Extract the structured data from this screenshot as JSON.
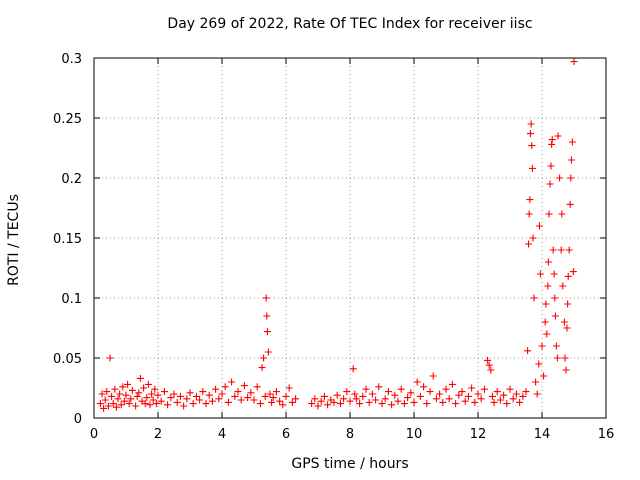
{
  "chart_data": {
    "type": "scatter",
    "title": "Day 269 of 2022, Rate Of TEC Index for receiver iisc",
    "xlabel": "GPS time / hours",
    "ylabel": "ROTI / TECUs",
    "xlim": [
      0,
      16
    ],
    "ylim": [
      0,
      0.3
    ],
    "xticks": [
      0,
      2,
      4,
      6,
      8,
      10,
      12,
      14,
      16
    ],
    "yticks": [
      0,
      0.05,
      0.1,
      0.15,
      0.2,
      0.25,
      0.3
    ],
    "ytick_labels": [
      "0",
      "0.05",
      "0.1",
      "0.15",
      "0.2",
      "0.25",
      "0.3"
    ],
    "grid": true,
    "marker": "+",
    "series": [
      {
        "name": "ROTI",
        "color": "#ff0000",
        "points": [
          [
            0.2,
            0.012
          ],
          [
            0.25,
            0.02
          ],
          [
            0.3,
            0.008
          ],
          [
            0.35,
            0.015
          ],
          [
            0.4,
            0.022
          ],
          [
            0.45,
            0.01
          ],
          [
            0.5,
            0.05
          ],
          [
            0.55,
            0.018
          ],
          [
            0.6,
            0.012
          ],
          [
            0.65,
            0.024
          ],
          [
            0.7,
            0.009
          ],
          [
            0.75,
            0.016
          ],
          [
            0.8,
            0.02
          ],
          [
            0.85,
            0.011
          ],
          [
            0.9,
            0.026
          ],
          [
            0.95,
            0.014
          ],
          [
            1.0,
            0.019
          ],
          [
            1.05,
            0.028
          ],
          [
            1.1,
            0.012
          ],
          [
            1.15,
            0.016
          ],
          [
            1.2,
            0.023
          ],
          [
            1.3,
            0.01
          ],
          [
            1.35,
            0.018
          ],
          [
            1.4,
            0.021
          ],
          [
            1.45,
            0.033
          ],
          [
            1.5,
            0.014
          ],
          [
            1.55,
            0.025
          ],
          [
            1.6,
            0.012
          ],
          [
            1.65,
            0.017
          ],
          [
            1.7,
            0.028
          ],
          [
            1.75,
            0.011
          ],
          [
            1.8,
            0.02
          ],
          [
            1.85,
            0.015
          ],
          [
            1.9,
            0.024
          ],
          [
            1.95,
            0.012
          ],
          [
            2.0,
            0.019
          ],
          [
            2.1,
            0.014
          ],
          [
            2.2,
            0.022
          ],
          [
            2.3,
            0.011
          ],
          [
            2.4,
            0.017
          ],
          [
            2.5,
            0.02
          ],
          [
            2.6,
            0.013
          ],
          [
            2.7,
            0.018
          ],
          [
            2.8,
            0.01
          ],
          [
            2.9,
            0.016
          ],
          [
            3.0,
            0.021
          ],
          [
            3.1,
            0.012
          ],
          [
            3.2,
            0.018
          ],
          [
            3.3,
            0.015
          ],
          [
            3.4,
            0.022
          ],
          [
            3.5,
            0.012
          ],
          [
            3.6,
            0.019
          ],
          [
            3.7,
            0.014
          ],
          [
            3.8,
            0.024
          ],
          [
            3.9,
            0.016
          ],
          [
            4.0,
            0.02
          ],
          [
            4.1,
            0.026
          ],
          [
            4.2,
            0.013
          ],
          [
            4.3,
            0.03
          ],
          [
            4.4,
            0.018
          ],
          [
            4.5,
            0.022
          ],
          [
            4.6,
            0.015
          ],
          [
            4.7,
            0.027
          ],
          [
            4.8,
            0.017
          ],
          [
            4.9,
            0.021
          ],
          [
            5.0,
            0.015
          ],
          [
            5.1,
            0.026
          ],
          [
            5.2,
            0.012
          ],
          [
            5.25,
            0.042
          ],
          [
            5.3,
            0.05
          ],
          [
            5.35,
            0.018
          ],
          [
            5.38,
            0.1
          ],
          [
            5.4,
            0.085
          ],
          [
            5.42,
            0.072
          ],
          [
            5.45,
            0.055
          ],
          [
            5.5,
            0.02
          ],
          [
            5.55,
            0.013
          ],
          [
            5.6,
            0.017
          ],
          [
            5.7,
            0.022
          ],
          [
            5.8,
            0.014
          ],
          [
            5.9,
            0.011
          ],
          [
            6.0,
            0.018
          ],
          [
            6.1,
            0.025
          ],
          [
            6.2,
            0.013
          ],
          [
            6.3,
            0.016
          ],
          [
            6.8,
            0.012
          ],
          [
            6.9,
            0.016
          ],
          [
            7.0,
            0.01
          ],
          [
            7.1,
            0.014
          ],
          [
            7.2,
            0.018
          ],
          [
            7.3,
            0.011
          ],
          [
            7.4,
            0.015
          ],
          [
            7.5,
            0.013
          ],
          [
            7.6,
            0.019
          ],
          [
            7.7,
            0.012
          ],
          [
            7.8,
            0.016
          ],
          [
            7.9,
            0.022
          ],
          [
            8.0,
            0.014
          ],
          [
            8.1,
            0.041
          ],
          [
            8.15,
            0.02
          ],
          [
            8.2,
            0.016
          ],
          [
            8.3,
            0.012
          ],
          [
            8.4,
            0.018
          ],
          [
            8.5,
            0.024
          ],
          [
            8.6,
            0.013
          ],
          [
            8.7,
            0.02
          ],
          [
            8.8,
            0.015
          ],
          [
            8.9,
            0.026
          ],
          [
            9.0,
            0.012
          ],
          [
            9.1,
            0.016
          ],
          [
            9.2,
            0.022
          ],
          [
            9.3,
            0.011
          ],
          [
            9.4,
            0.019
          ],
          [
            9.5,
            0.014
          ],
          [
            9.6,
            0.024
          ],
          [
            9.7,
            0.012
          ],
          [
            9.8,
            0.017
          ],
          [
            9.9,
            0.021
          ],
          [
            10.0,
            0.013
          ],
          [
            10.1,
            0.03
          ],
          [
            10.2,
            0.018
          ],
          [
            10.3,
            0.026
          ],
          [
            10.4,
            0.012
          ],
          [
            10.5,
            0.022
          ],
          [
            10.6,
            0.035
          ],
          [
            10.7,
            0.016
          ],
          [
            10.8,
            0.02
          ],
          [
            10.9,
            0.013
          ],
          [
            11.0,
            0.024
          ],
          [
            11.1,
            0.016
          ],
          [
            11.2,
            0.028
          ],
          [
            11.3,
            0.012
          ],
          [
            11.4,
            0.019
          ],
          [
            11.5,
            0.022
          ],
          [
            11.6,
            0.014
          ],
          [
            11.7,
            0.018
          ],
          [
            11.8,
            0.025
          ],
          [
            11.9,
            0.013
          ],
          [
            12.0,
            0.02
          ],
          [
            12.1,
            0.016
          ],
          [
            12.2,
            0.024
          ],
          [
            12.3,
            0.048
          ],
          [
            12.35,
            0.044
          ],
          [
            12.4,
            0.04
          ],
          [
            12.45,
            0.018
          ],
          [
            12.5,
            0.013
          ],
          [
            12.6,
            0.022
          ],
          [
            12.7,
            0.015
          ],
          [
            12.8,
            0.019
          ],
          [
            12.9,
            0.012
          ],
          [
            13.0,
            0.024
          ],
          [
            13.1,
            0.016
          ],
          [
            13.2,
            0.02
          ],
          [
            13.3,
            0.013
          ],
          [
            13.4,
            0.018
          ],
          [
            13.5,
            0.022
          ],
          [
            13.55,
            0.056
          ],
          [
            13.58,
            0.145
          ],
          [
            13.6,
            0.17
          ],
          [
            13.62,
            0.182
          ],
          [
            13.64,
            0.237
          ],
          [
            13.66,
            0.245
          ],
          [
            13.68,
            0.227
          ],
          [
            13.7,
            0.208
          ],
          [
            13.72,
            0.15
          ],
          [
            13.75,
            0.1
          ],
          [
            13.8,
            0.03
          ],
          [
            13.85,
            0.02
          ],
          [
            13.9,
            0.045
          ],
          [
            13.92,
            0.16
          ],
          [
            13.95,
            0.12
          ],
          [
            14.0,
            0.06
          ],
          [
            14.05,
            0.035
          ],
          [
            14.1,
            0.08
          ],
          [
            14.12,
            0.095
          ],
          [
            14.15,
            0.07
          ],
          [
            14.18,
            0.11
          ],
          [
            14.2,
            0.13
          ],
          [
            14.22,
            0.17
          ],
          [
            14.25,
            0.195
          ],
          [
            14.28,
            0.21
          ],
          [
            14.3,
            0.228
          ],
          [
            14.32,
            0.232
          ],
          [
            14.35,
            0.14
          ],
          [
            14.38,
            0.12
          ],
          [
            14.4,
            0.1
          ],
          [
            14.42,
            0.085
          ],
          [
            14.45,
            0.06
          ],
          [
            14.48,
            0.05
          ],
          [
            14.5,
            0.235
          ],
          [
            14.55,
            0.2
          ],
          [
            14.6,
            0.14
          ],
          [
            14.62,
            0.17
          ],
          [
            14.65,
            0.11
          ],
          [
            14.7,
            0.08
          ],
          [
            14.72,
            0.05
          ],
          [
            14.75,
            0.04
          ],
          [
            14.78,
            0.075
          ],
          [
            14.8,
            0.095
          ],
          [
            14.82,
            0.118
          ],
          [
            14.85,
            0.14
          ],
          [
            14.88,
            0.178
          ],
          [
            14.9,
            0.2
          ],
          [
            14.92,
            0.215
          ],
          [
            14.95,
            0.23
          ],
          [
            14.98,
            0.122
          ],
          [
            15.0,
            0.297
          ]
        ]
      }
    ]
  }
}
